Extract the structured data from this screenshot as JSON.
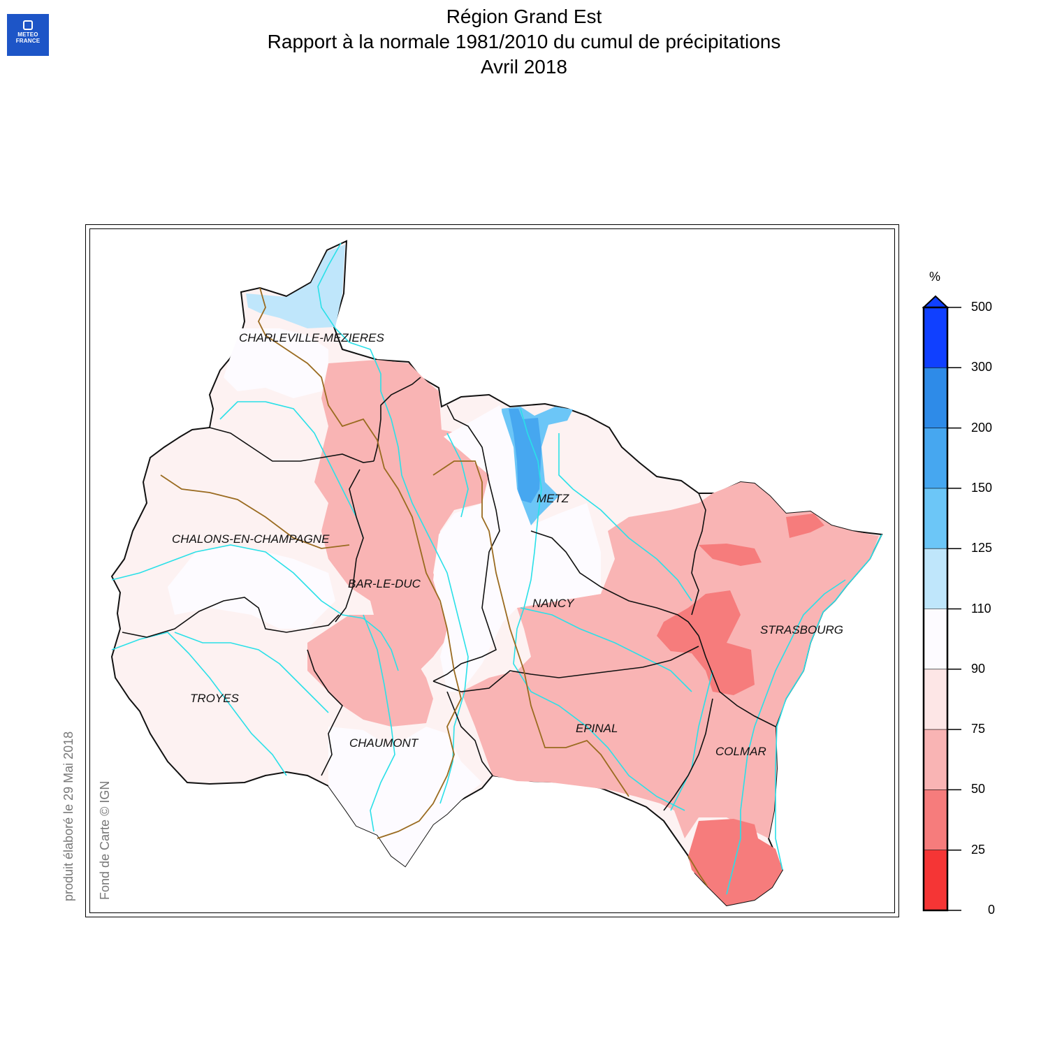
{
  "logo": {
    "line1": "METEO",
    "line2": "FRANCE"
  },
  "title": {
    "line1": "Région Grand Est",
    "line2": "Rapport à la normale 1981/2010 du cumul de précipitations",
    "line3": "Avril 2018"
  },
  "cities": {
    "charleville": "CHARLEVILLE-MEZIERES",
    "metz": "METZ",
    "chalons": "CHALONS-EN-CHAMPAGNE",
    "barleduc": "BAR-LE-DUC",
    "nancy": "NANCY",
    "strasbourg": "STRASBOURG",
    "troyes": "TROYES",
    "epinal": "EPINAL",
    "chaumont": "CHAUMONT",
    "colmar": "COLMAR"
  },
  "credits": {
    "produced": "produit élaboré le 29 Mai 2018",
    "basemap": "Fond de Carte © IGN"
  },
  "legend": {
    "unit": "%",
    "ticks": [
      "500",
      "300",
      "200",
      "150",
      "125",
      "110",
      "90",
      "75",
      "50",
      "25",
      "0"
    ],
    "colors": [
      "#1040ff",
      "#2e8be8",
      "#46a7f0",
      "#6cc6f7",
      "#bfe6fb",
      "#fdfbff",
      "#fde6e6",
      "#f9b4b4",
      "#f67c7c",
      "#f53535"
    ]
  },
  "colors": {
    "river": "#2ae0e8",
    "boundary": "#9a6b20",
    "border": "#111111"
  }
}
